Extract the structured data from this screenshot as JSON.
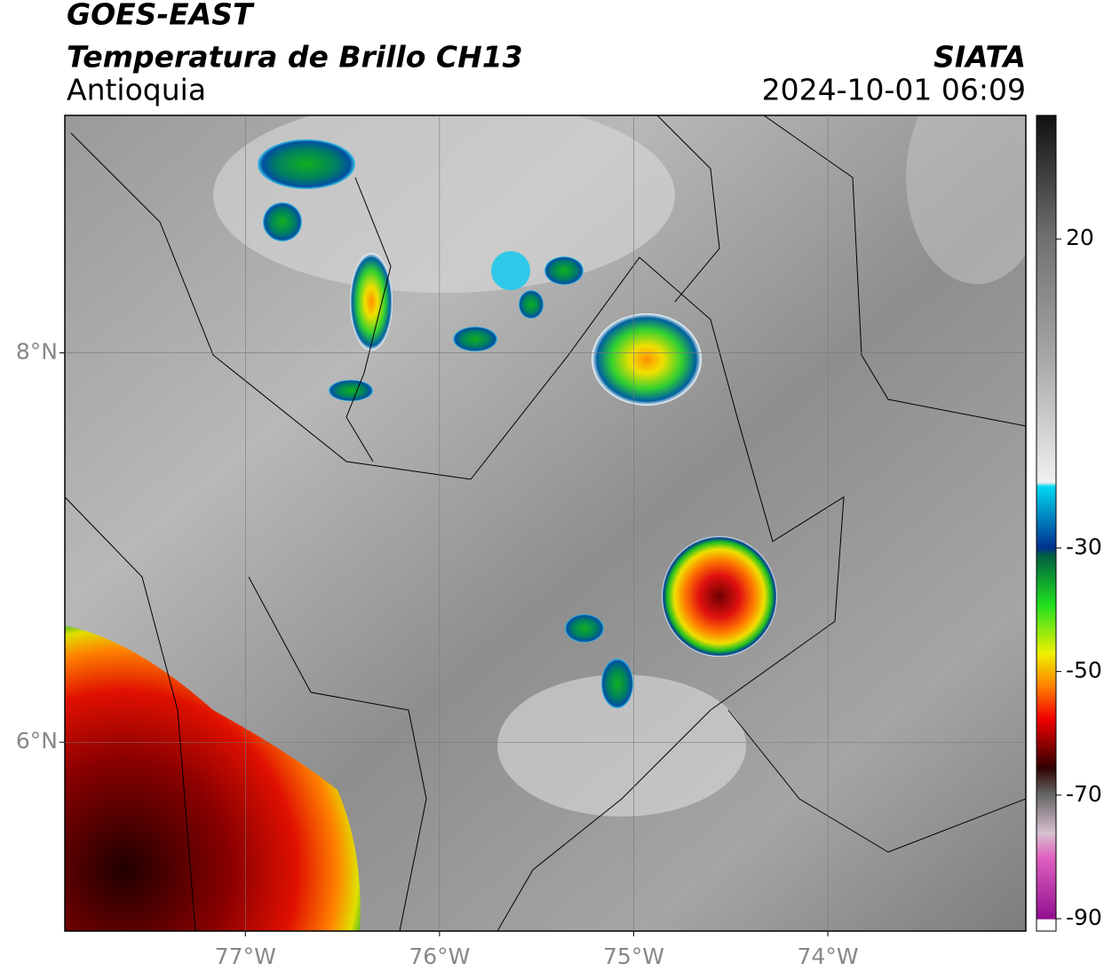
{
  "header": {
    "title": "GOES-EAST",
    "subtitle": "Temperatura de Brillo CH13",
    "region": "Antioquia",
    "source": "SIATA",
    "datetime": "2024-10-01 06:09"
  },
  "map": {
    "xlim": [
      -77.93,
      -72.98
    ],
    "ylim": [
      5.03,
      9.22
    ],
    "xticks": [
      {
        "value": -77,
        "label": "77°W"
      },
      {
        "value": -76,
        "label": "76°W"
      },
      {
        "value": -75,
        "label": "75°W"
      },
      {
        "value": -74,
        "label": "74°W"
      }
    ],
    "yticks": [
      {
        "value": 6,
        "label": "6°N"
      },
      {
        "value": 8,
        "label": "8°N"
      }
    ],
    "grid": true
  },
  "colorbar": {
    "clim": [
      -92,
      40
    ],
    "ticks": [
      20,
      -30,
      -50,
      -70,
      -90
    ]
  }
}
